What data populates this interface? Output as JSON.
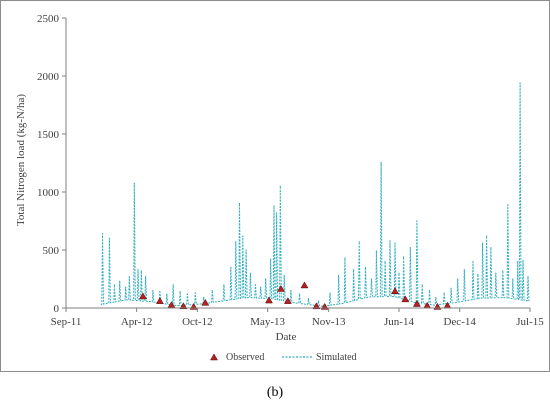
{
  "chart_data": {
    "type": "line",
    "xlabel": "Date",
    "ylabel": "Total Nitrogen load (kg-N/ha)",
    "ylim": [
      0,
      2500
    ],
    "yticks": [
      0,
      500,
      1000,
      1500,
      2000,
      2500
    ],
    "xlim": [
      "2011-09-01",
      "2015-07-01"
    ],
    "xticks": [
      {
        "label": "Sep-11",
        "date": "2011-09-01"
      },
      {
        "label": "Apr-12",
        "date": "2012-04-01"
      },
      {
        "label": "Oct-12",
        "date": "2012-10-01"
      },
      {
        "label": "May-13",
        "date": "2013-05-01"
      },
      {
        "label": "Nov-13",
        "date": "2013-11-01"
      },
      {
        "label": "Jun-14",
        "date": "2014-06-01"
      },
      {
        "label": "Dec-14",
        "date": "2014-12-01"
      },
      {
        "label": "Jul-15",
        "date": "2015-07-01"
      }
    ],
    "grid": false,
    "legend_position": "bottom",
    "series": [
      {
        "name": "Simulated",
        "style": "dashed-line",
        "color": "#2eaebe",
        "baseline": [
          {
            "x": "2011-12-15",
            "y": 30
          },
          {
            "x": "2012-03-01",
            "y": 70
          },
          {
            "x": "2012-05-15",
            "y": 55
          },
          {
            "x": "2012-08-01",
            "y": 20
          },
          {
            "x": "2012-10-15",
            "y": 35
          },
          {
            "x": "2012-12-15",
            "y": 60
          },
          {
            "x": "2013-03-01",
            "y": 90
          },
          {
            "x": "2013-05-15",
            "y": 80
          },
          {
            "x": "2013-08-01",
            "y": 40
          },
          {
            "x": "2013-10-15",
            "y": 15
          },
          {
            "x": "2013-12-15",
            "y": 40
          },
          {
            "x": "2014-03-01",
            "y": 95
          },
          {
            "x": "2014-05-15",
            "y": 100
          },
          {
            "x": "2014-07-15",
            "y": 50
          },
          {
            "x": "2014-09-15",
            "y": 25
          },
          {
            "x": "2014-11-15",
            "y": 45
          },
          {
            "x": "2015-02-01",
            "y": 85
          },
          {
            "x": "2015-04-15",
            "y": 90
          },
          {
            "x": "2015-07-01",
            "y": 60
          }
        ],
        "peaks": [
          {
            "x": "2011-12-20",
            "y": 640
          },
          {
            "x": "2012-01-10",
            "y": 600
          },
          {
            "x": "2012-01-25",
            "y": 200
          },
          {
            "x": "2012-02-10",
            "y": 230
          },
          {
            "x": "2012-02-28",
            "y": 180
          },
          {
            "x": "2012-03-10",
            "y": 270
          },
          {
            "x": "2012-03-25",
            "y": 1075
          },
          {
            "x": "2012-04-05",
            "y": 330
          },
          {
            "x": "2012-04-15",
            "y": 320
          },
          {
            "x": "2012-04-28",
            "y": 270
          },
          {
            "x": "2012-05-20",
            "y": 150
          },
          {
            "x": "2012-06-10",
            "y": 140
          },
          {
            "x": "2012-07-01",
            "y": 120
          },
          {
            "x": "2012-07-20",
            "y": 200
          },
          {
            "x": "2012-08-10",
            "y": 140
          },
          {
            "x": "2012-09-01",
            "y": 120
          },
          {
            "x": "2012-09-25",
            "y": 130
          },
          {
            "x": "2012-10-20",
            "y": 90
          },
          {
            "x": "2012-11-15",
            "y": 150
          },
          {
            "x": "2012-12-20",
            "y": 200
          },
          {
            "x": "2013-01-10",
            "y": 350
          },
          {
            "x": "2013-01-25",
            "y": 570
          },
          {
            "x": "2013-02-05",
            "y": 900
          },
          {
            "x": "2013-02-15",
            "y": 620
          },
          {
            "x": "2013-02-25",
            "y": 500
          },
          {
            "x": "2013-03-10",
            "y": 300
          },
          {
            "x": "2013-03-25",
            "y": 200
          },
          {
            "x": "2013-04-10",
            "y": 180
          },
          {
            "x": "2013-04-25",
            "y": 250
          },
          {
            "x": "2013-05-10",
            "y": 420
          },
          {
            "x": "2013-05-20",
            "y": 880
          },
          {
            "x": "2013-05-28",
            "y": 820
          },
          {
            "x": "2013-06-08",
            "y": 1050
          },
          {
            "x": "2013-06-20",
            "y": 280
          },
          {
            "x": "2013-07-10",
            "y": 150
          },
          {
            "x": "2013-08-05",
            "y": 120
          },
          {
            "x": "2013-09-01",
            "y": 80
          },
          {
            "x": "2013-10-01",
            "y": 60
          },
          {
            "x": "2013-11-05",
            "y": 130
          },
          {
            "x": "2013-12-01",
            "y": 280
          },
          {
            "x": "2013-12-20",
            "y": 430
          },
          {
            "x": "2014-01-15",
            "y": 330
          },
          {
            "x": "2014-02-01",
            "y": 570
          },
          {
            "x": "2014-02-20",
            "y": 350
          },
          {
            "x": "2014-03-10",
            "y": 250
          },
          {
            "x": "2014-03-25",
            "y": 490
          },
          {
            "x": "2014-04-08",
            "y": 1255
          },
          {
            "x": "2014-04-20",
            "y": 400
          },
          {
            "x": "2014-05-05",
            "y": 580
          },
          {
            "x": "2014-05-20",
            "y": 560
          },
          {
            "x": "2014-06-01",
            "y": 300
          },
          {
            "x": "2014-06-15",
            "y": 440
          },
          {
            "x": "2014-07-05",
            "y": 520
          },
          {
            "x": "2014-07-25",
            "y": 750
          },
          {
            "x": "2014-08-10",
            "y": 200
          },
          {
            "x": "2014-09-01",
            "y": 150
          },
          {
            "x": "2014-09-20",
            "y": 90
          },
          {
            "x": "2014-10-15",
            "y": 130
          },
          {
            "x": "2014-11-05",
            "y": 170
          },
          {
            "x": "2014-11-25",
            "y": 250
          },
          {
            "x": "2014-12-15",
            "y": 330
          },
          {
            "x": "2015-01-10",
            "y": 400
          },
          {
            "x": "2015-01-25",
            "y": 290
          },
          {
            "x": "2015-02-08",
            "y": 560
          },
          {
            "x": "2015-02-20",
            "y": 620
          },
          {
            "x": "2015-03-05",
            "y": 520
          },
          {
            "x": "2015-03-20",
            "y": 300
          },
          {
            "x": "2015-04-10",
            "y": 320
          },
          {
            "x": "2015-04-25",
            "y": 890
          },
          {
            "x": "2015-05-10",
            "y": 250
          },
          {
            "x": "2015-05-25",
            "y": 400
          },
          {
            "x": "2015-06-01",
            "y": 1940
          },
          {
            "x": "2015-06-10",
            "y": 410
          },
          {
            "x": "2015-06-25",
            "y": 270
          }
        ]
      },
      {
        "name": "Observed",
        "style": "triangle-marker",
        "color": "#b22222",
        "points": [
          {
            "x": "2012-04-20",
            "y": 95
          },
          {
            "x": "2012-06-10",
            "y": 55
          },
          {
            "x": "2012-07-15",
            "y": 20
          },
          {
            "x": "2012-08-20",
            "y": 10
          },
          {
            "x": "2012-09-20",
            "y": 5
          },
          {
            "x": "2012-10-25",
            "y": 40
          },
          {
            "x": "2013-05-05",
            "y": 60
          },
          {
            "x": "2013-06-10",
            "y": 160
          },
          {
            "x": "2013-07-01",
            "y": 55
          },
          {
            "x": "2013-08-20",
            "y": 190
          },
          {
            "x": "2013-09-25",
            "y": 10
          },
          {
            "x": "2013-10-20",
            "y": 5
          },
          {
            "x": "2014-05-20",
            "y": 140
          },
          {
            "x": "2014-06-20",
            "y": 70
          },
          {
            "x": "2014-07-25",
            "y": 30
          },
          {
            "x": "2014-08-25",
            "y": 15
          },
          {
            "x": "2014-09-25",
            "y": 5
          },
          {
            "x": "2014-10-25",
            "y": 15
          }
        ]
      }
    ]
  },
  "legend": {
    "observed_label": "Observed",
    "simulated_label": "Simulated"
  },
  "panel_label": "(b)"
}
